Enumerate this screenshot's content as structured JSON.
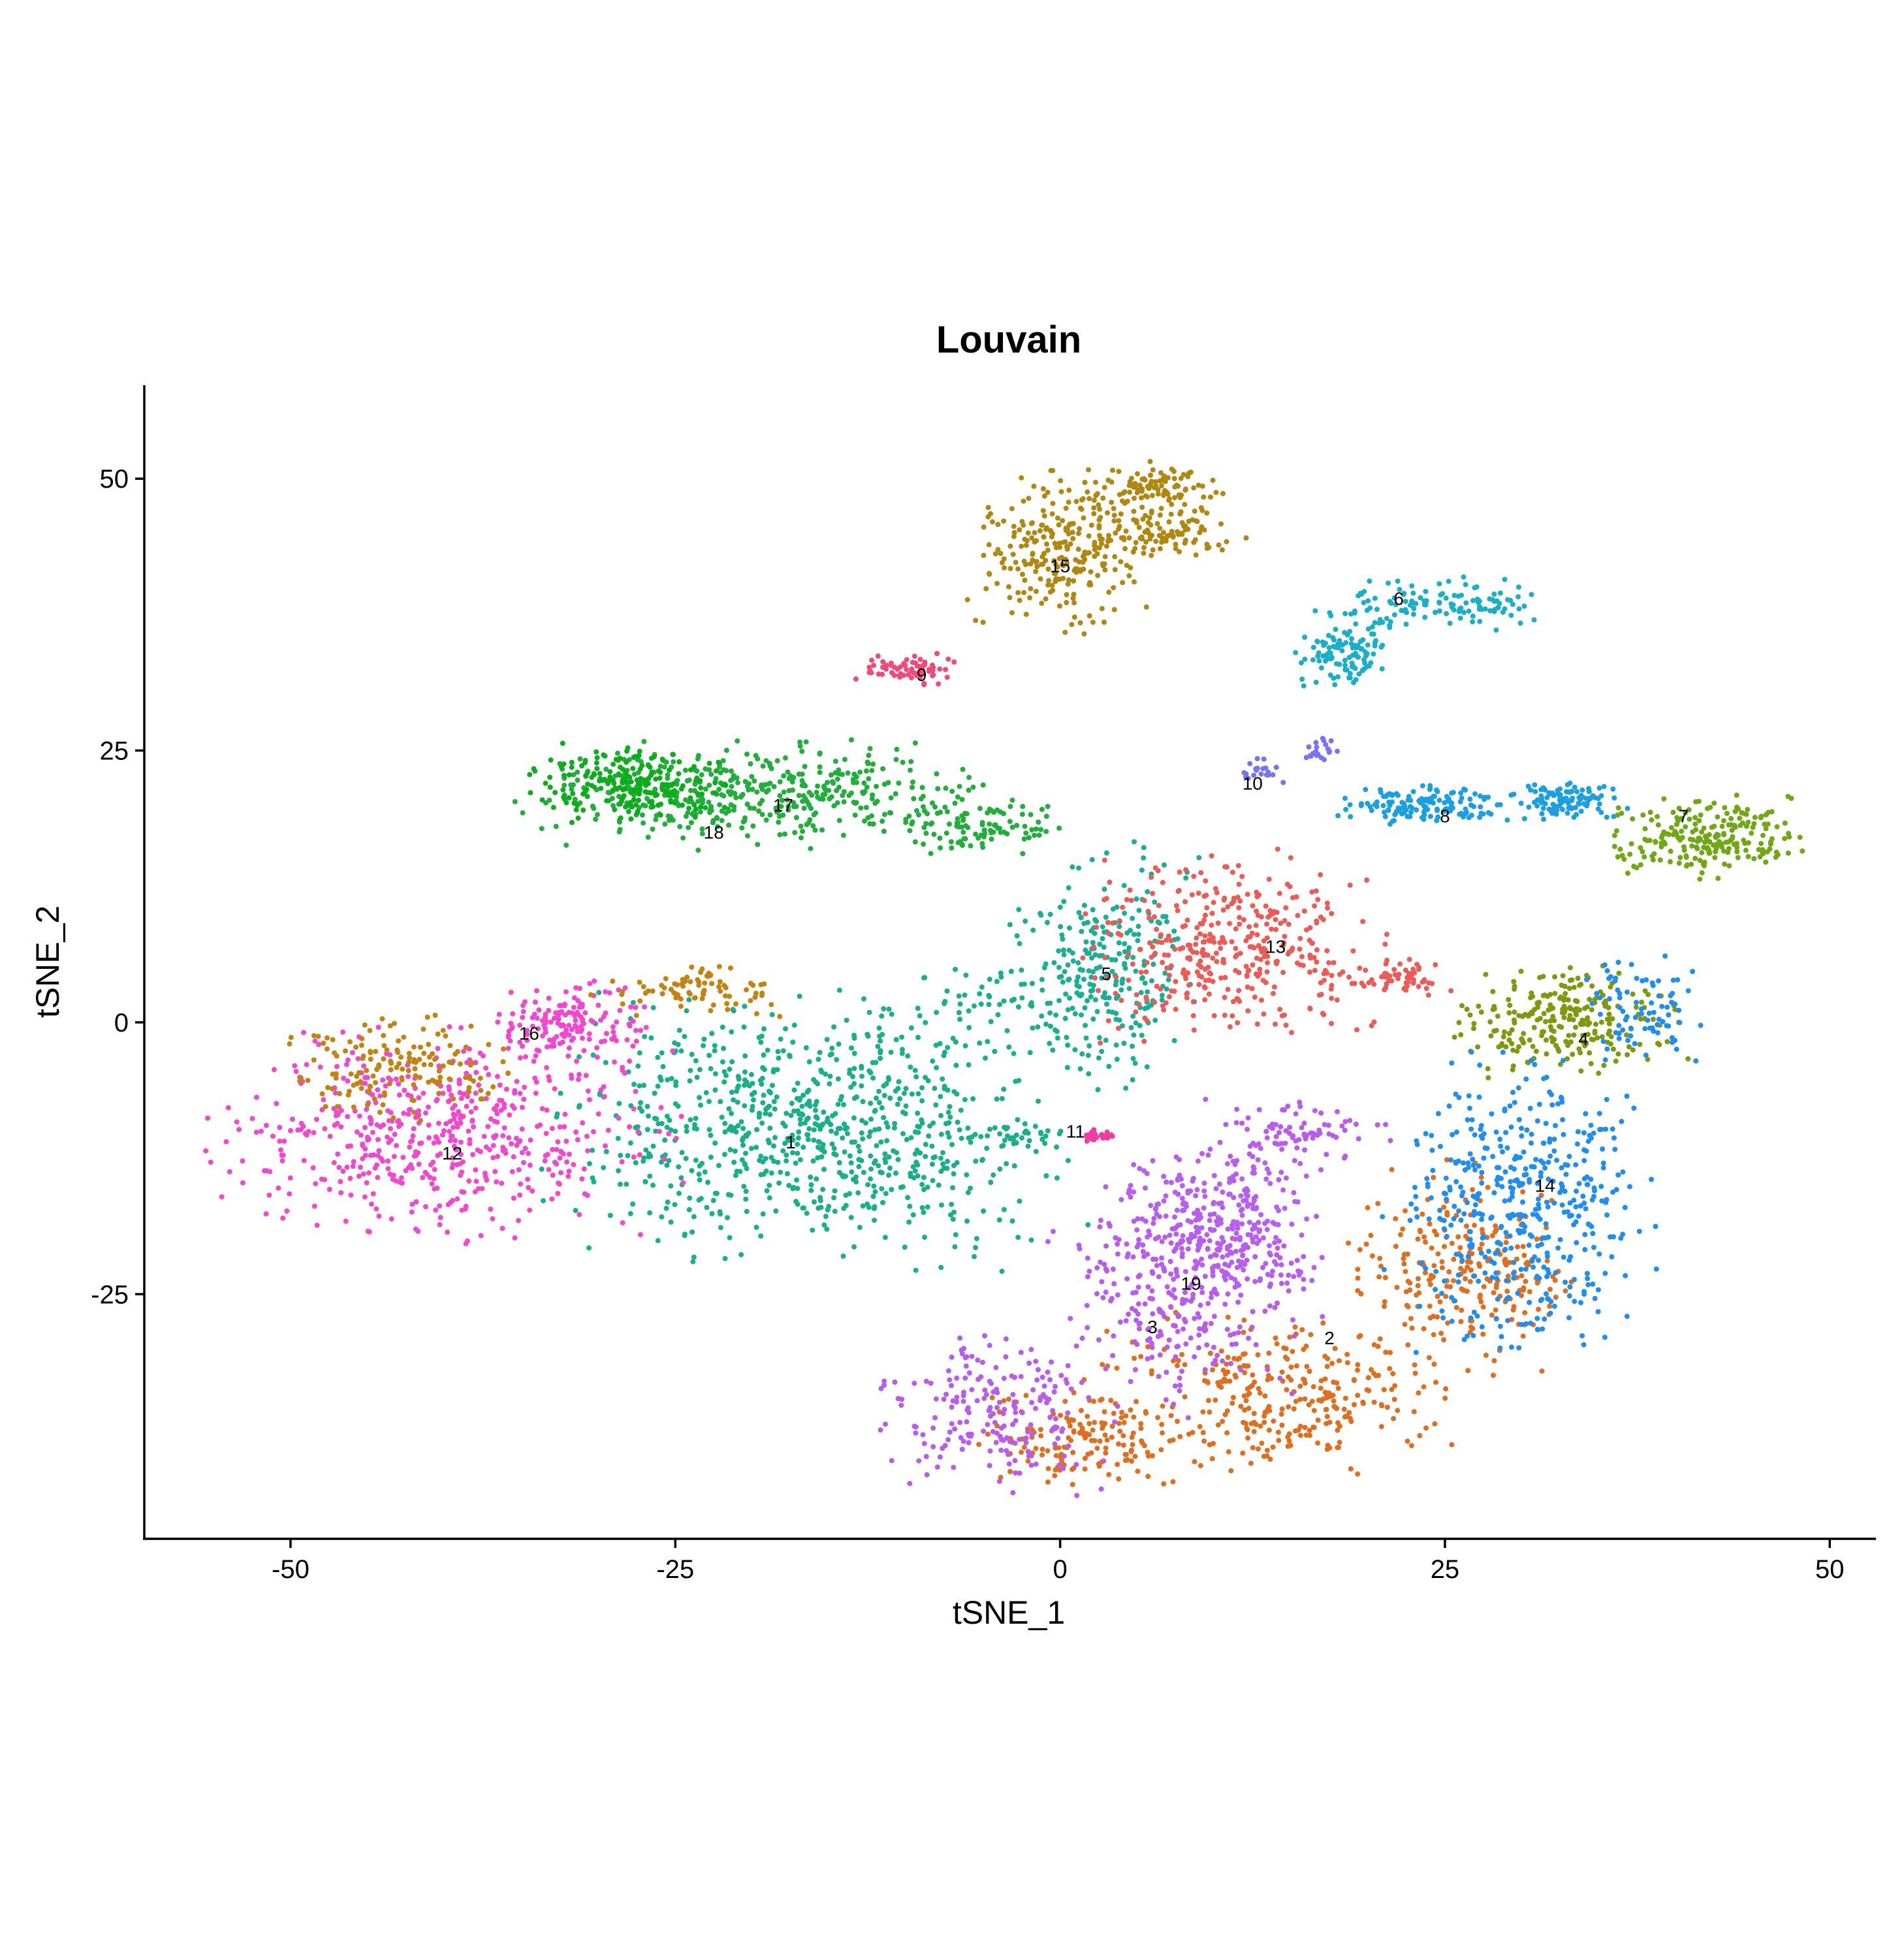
{
  "chart_data": {
    "type": "scatter",
    "title": "Louvain",
    "xlabel": "tSNE_1",
    "ylabel": "tSNE_2",
    "xlim": [
      -59.5,
      53.0
    ],
    "ylim": [
      -47.5,
      58.6
    ],
    "x_ticks": [
      -50,
      -25,
      0,
      25,
      50
    ],
    "x_tick_labels": [
      "-50",
      "-25",
      "0",
      "25",
      "50"
    ],
    "y_ticks": [
      -25,
      0,
      25,
      50
    ],
    "y_tick_labels": [
      "-25",
      "0",
      "25",
      "50"
    ],
    "grid": false,
    "legend": "none",
    "clusters": [
      {
        "label": "1",
        "x": -17.5,
        "y": -11,
        "color": "#17B08A",
        "count": 900,
        "regions": [
          {
            "cx": -16,
            "cy": -10,
            "rx": 14,
            "ry": 10,
            "n": 800
          },
          {
            "cx": -4,
            "cy": 2,
            "rx": 6,
            "ry": 3,
            "n": 60
          },
          {
            "cx": -3,
            "cy": -10.5,
            "rx": 3,
            "ry": 1,
            "n": 30
          }
        ]
      },
      {
        "label": "2",
        "x": 17.5,
        "y": -29,
        "color": "#DF6F1E",
        "count": 750,
        "regions": [
          {
            "cx": 14,
            "cy": -34,
            "rx": 9,
            "ry": 6,
            "n": 300
          },
          {
            "cx": 2,
            "cy": -38,
            "rx": 6,
            "ry": 4,
            "n": 150
          },
          {
            "cx": 26,
            "cy": -23,
            "rx": 6,
            "ry": 8,
            "n": 250
          }
        ]
      },
      {
        "label": "3",
        "x": 6,
        "y": -28,
        "color": "#B95BEE",
        "count": 650,
        "regions": [
          {
            "cx": 8,
            "cy": -24,
            "rx": 7,
            "ry": 10,
            "n": 350
          },
          {
            "cx": -4,
            "cy": -36,
            "rx": 6,
            "ry": 6,
            "n": 200
          },
          {
            "cx": 15,
            "cy": -10,
            "rx": 5,
            "ry": 2.5,
            "n": 80
          }
        ]
      },
      {
        "label": "4",
        "x": 34,
        "y": -1.5,
        "color": "#7C9A0B",
        "count": 280,
        "regions": [
          {
            "cx": 33,
            "cy": 0,
            "rx": 6,
            "ry": 4,
            "n": 250
          }
        ]
      },
      {
        "label": "5",
        "x": 3,
        "y": 4.5,
        "color": "#1AAF94",
        "count": 260,
        "regions": [
          {
            "cx": 3,
            "cy": 5,
            "rx": 5,
            "ry": 9,
            "n": 250
          }
        ]
      },
      {
        "label": "6",
        "x": 22,
        "y": 39,
        "color": "#1AAFC8",
        "count": 250,
        "regions": [
          {
            "cx": 25,
            "cy": 38.5,
            "rx": 6,
            "ry": 2,
            "n": 120
          },
          {
            "cx": 18.5,
            "cy": 34,
            "rx": 2.5,
            "ry": 3,
            "n": 110
          }
        ]
      },
      {
        "label": "7",
        "x": 40.5,
        "y": 19,
        "color": "#6FA812",
        "count": 230,
        "regions": [
          {
            "cx": 42,
            "cy": 17,
            "rx": 5,
            "ry": 3,
            "n": 220
          }
        ]
      },
      {
        "label": "8",
        "x": 25,
        "y": 19,
        "color": "#1A9FE0",
        "count": 250,
        "regions": [
          {
            "cx": 24,
            "cy": 20,
            "rx": 5,
            "ry": 1.5,
            "n": 150
          },
          {
            "cx": 33,
            "cy": 20.5,
            "rx": 3,
            "ry": 1.5,
            "n": 100
          }
        ]
      },
      {
        "label": "9",
        "x": -9,
        "y": 32,
        "color": "#F0497A",
        "count": 70,
        "regions": [
          {
            "cx": -10,
            "cy": 32.5,
            "rx": 3,
            "ry": 1.2,
            "n": 70
          }
        ]
      },
      {
        "label": "10",
        "x": 12.5,
        "y": 22,
        "color": "#7575F0",
        "count": 40,
        "regions": [
          {
            "cx": 13,
            "cy": 23,
            "rx": 1.2,
            "ry": 1,
            "n": 20
          },
          {
            "cx": 17,
            "cy": 25,
            "rx": 1,
            "ry": 1,
            "n": 20
          }
        ]
      },
      {
        "label": "11",
        "x": 1,
        "y": -10,
        "color": "#F03AA5",
        "count": 30,
        "regions": [
          {
            "cx": 2.5,
            "cy": -10.5,
            "rx": 1.2,
            "ry": 0.5,
            "n": 30
          }
        ]
      },
      {
        "label": "12",
        "x": -39.5,
        "y": -12,
        "color": "#F148CF",
        "count": 700,
        "regions": [
          {
            "cx": -40,
            "cy": -10,
            "rx": 12,
            "ry": 8,
            "n": 550
          },
          {
            "cx": -32,
            "cy": 0,
            "rx": 4,
            "ry": 3,
            "n": 150
          }
        ]
      },
      {
        "label": "13",
        "x": 14,
        "y": 7,
        "color": "#EC5B55",
        "count": 450,
        "regions": [
          {
            "cx": 11,
            "cy": 7,
            "rx": 8,
            "ry": 7,
            "n": 380
          },
          {
            "cx": 22,
            "cy": 4,
            "rx": 3,
            "ry": 1.5,
            "n": 60
          }
        ]
      },
      {
        "label": "14",
        "x": 31.5,
        "y": -15,
        "color": "#1F8EF2",
        "count": 600,
        "regions": [
          {
            "cx": 30,
            "cy": -17,
            "rx": 7,
            "ry": 11,
            "n": 450
          },
          {
            "cx": 38,
            "cy": 1,
            "rx": 3,
            "ry": 4,
            "n": 80
          }
        ]
      },
      {
        "label": "15",
        "x": 0,
        "y": 42,
        "color": "#B0870F",
        "count": 460,
        "regions": [
          {
            "cx": 0,
            "cy": 43,
            "rx": 5,
            "ry": 6,
            "n": 250
          },
          {
            "cx": 6,
            "cy": 49,
            "rx": 4,
            "ry": 2,
            "n": 110
          },
          {
            "cx": 7,
            "cy": 45,
            "rx": 4,
            "ry": 2,
            "n": 90
          }
        ]
      },
      {
        "label": "16",
        "x": -34.5,
        "y": -1,
        "color": "#C4820E",
        "count": 250,
        "regions": [
          {
            "cx": -43,
            "cy": -4,
            "rx": 6,
            "ry": 4,
            "n": 150
          },
          {
            "cx": -24,
            "cy": 3,
            "rx": 5,
            "ry": 2,
            "n": 80
          }
        ]
      },
      {
        "label": "17",
        "x": -18,
        "y": 20,
        "color": "#21AE3A",
        "count": 550,
        "regions": [
          {
            "cx": -20,
            "cy": 21,
            "rx": 12,
            "ry": 4,
            "n": 450
          },
          {
            "cx": -5,
            "cy": 18,
            "rx": 5,
            "ry": 2,
            "n": 100
          }
        ]
      },
      {
        "label": "18",
        "x": -22.5,
        "y": 17.5,
        "color": "#0BAD1A",
        "count": 200,
        "regions": [
          {
            "cx": -28,
            "cy": 22,
            "rx": 5,
            "ry": 3,
            "n": 200
          }
        ]
      },
      {
        "label": "19",
        "x": 8.5,
        "y": -24,
        "color": "#B75FF2",
        "count": 220,
        "regions": [
          {
            "cx": 11,
            "cy": -18,
            "rx": 5,
            "ry": 6,
            "n": 220
          }
        ]
      }
    ]
  }
}
